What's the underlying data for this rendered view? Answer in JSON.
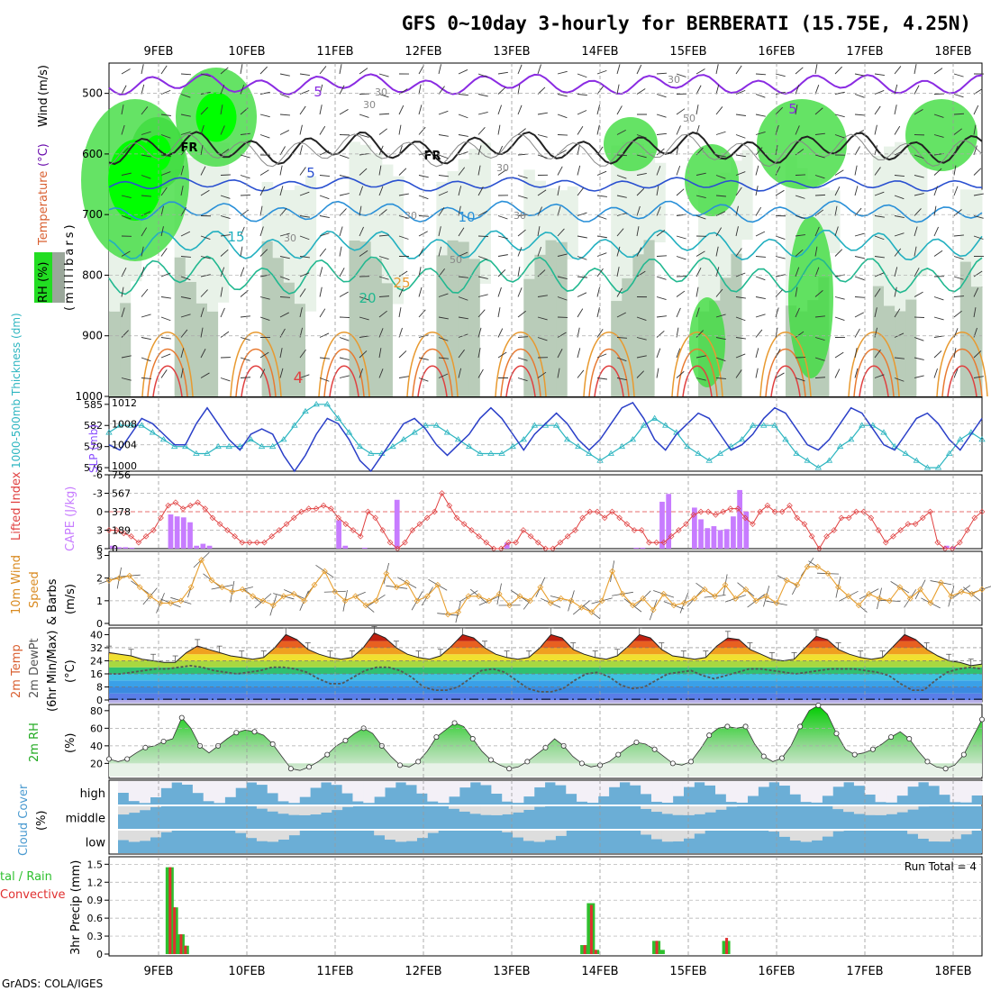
{
  "title": "GFS 0~10day 3-hourly for BERBERATI (15.75E, 4.25N)",
  "credit": "GrADS: COLA/IGES",
  "dates": [
    "9FEB",
    "10FEB",
    "11FEB",
    "12FEB",
    "13FEB",
    "14FEB",
    "15FEB",
    "16FEB",
    "17FEB",
    "18FEB"
  ],
  "colors": {
    "temp_line": "#d95f30",
    "wind_label": "#d98a20",
    "rh_green": "#22bb22",
    "cloud_blue": "#6baed6",
    "cloud_white": "#f3f0f7",
    "cloud_gray": "#dddddd",
    "slp_blue": "#2a3fc8",
    "thick_cyan": "#2cb5c0",
    "cape_purple": "#c77cff",
    "li_red": "#e04040",
    "precip_green": "#2ec02e",
    "precip_red": "#e03030",
    "dewpt_gray": "#555555"
  },
  "chart_data": [
    {
      "panel": "upper_air",
      "type": "heatmap",
      "ylabel_parts": [
        "RH (%)",
        "Temperature",
        "(°C)",
        "Wind",
        "(m/s)",
        "(millibars)"
      ],
      "y_ticks": [
        500,
        600,
        700,
        800,
        900,
        1000
      ],
      "ylim": [
        1000,
        450
      ],
      "contour_labels": [
        "5",
        "5",
        "FR",
        "FR",
        "5",
        "10",
        "15",
        "20",
        "25",
        "4",
        "30",
        "30",
        "30",
        "30",
        "30",
        "30",
        "30",
        "50",
        "50"
      ],
      "temperature_isotherms_c": [
        -5,
        0,
        5,
        10,
        15,
        20,
        25,
        30
      ]
    },
    {
      "panel": "slp_thickness",
      "type": "line",
      "ylabel_left": "1000-500mb Thickness (dm)",
      "ylabel_right": "SLP (mb)",
      "y_ticks_left": [
        576,
        579,
        582,
        585
      ],
      "y_ticks_right": [
        1000,
        1004,
        1008,
        1012
      ],
      "series": [
        {
          "name": "SLP",
          "values": [
            1004,
            1003,
            1006,
            1009,
            1008,
            1006,
            1004,
            1004,
            1008,
            1011,
            1008,
            1005,
            1003,
            1006,
            1007,
            1006,
            1002,
            999,
            1002,
            1006,
            1009,
            1008,
            1005,
            1001,
            999,
            1002,
            1005,
            1008,
            1009,
            1007,
            1004,
            1002,
            1004,
            1006,
            1009,
            1011,
            1009,
            1006,
            1003,
            1006,
            1008,
            1010,
            1008,
            1005,
            1003,
            1005,
            1008,
            1011,
            1012,
            1009,
            1005,
            1003,
            1006,
            1008,
            1010,
            1009,
            1006,
            1003,
            1004,
            1006,
            1009,
            1011,
            1010,
            1007,
            1004,
            1003,
            1005,
            1008,
            1011,
            1010,
            1007,
            1004,
            1003,
            1006,
            1009,
            1010,
            1008,
            1005,
            1003,
            1006,
            1009
          ]
        },
        {
          "name": "Thickness",
          "values": [
            581,
            582,
            582,
            582,
            581,
            580,
            579,
            579,
            578,
            578,
            579,
            579,
            579,
            580,
            579,
            579,
            580,
            582,
            584,
            585,
            585,
            583,
            581,
            579,
            578,
            578,
            579,
            580,
            581,
            582,
            582,
            581,
            580,
            579,
            578,
            578,
            578,
            579,
            580,
            582,
            582,
            582,
            580,
            579,
            578,
            577,
            578,
            579,
            580,
            582,
            583,
            582,
            581,
            579,
            578,
            577,
            578,
            579,
            580,
            582,
            582,
            582,
            580,
            578,
            577,
            576,
            577,
            579,
            580,
            582,
            582,
            581,
            579,
            578,
            577,
            576,
            576,
            578,
            580,
            581,
            580
          ]
        }
      ]
    },
    {
      "panel": "cape_li",
      "type": "bar",
      "ylabel_left": "Lifted Index",
      "ylabel_right": "CAPE (J/kg)",
      "y_ticks_left": [
        -6,
        -3,
        0,
        3,
        6
      ],
      "y_ticks_right": [
        0,
        189,
        378,
        567,
        756
      ],
      "series": [
        {
          "name": "CAPE",
          "values": [
            30,
            15,
            15,
            10,
            0,
            0,
            0,
            0,
            0,
            350,
            330,
            320,
            270,
            30,
            50,
            30,
            0,
            0,
            0,
            0,
            0,
            0,
            0,
            0,
            0,
            0,
            0,
            0,
            0,
            0,
            0,
            0,
            0,
            0,
            0,
            290,
            30,
            0,
            0,
            10,
            0,
            0,
            0,
            0,
            500,
            0,
            0,
            0,
            0,
            0,
            0,
            0,
            0,
            0,
            0,
            0,
            0,
            0,
            0,
            0,
            0,
            60,
            0,
            0,
            0,
            0,
            0,
            0,
            0,
            0,
            0,
            0,
            0,
            0,
            0,
            0,
            0,
            0,
            0,
            0,
            0,
            10,
            10,
            0,
            0,
            480,
            560,
            0,
            0,
            0,
            420,
            300,
            210,
            230,
            190,
            200,
            330,
            600,
            380,
            0,
            0,
            0,
            0,
            0,
            0,
            0,
            0,
            0,
            0,
            0,
            0,
            0,
            0,
            0,
            0,
            0,
            0,
            0,
            0,
            0,
            0,
            0,
            0,
            0,
            0,
            0,
            0,
            0,
            0,
            30,
            20,
            0,
            0,
            0,
            0
          ]
        },
        {
          "name": "Lifted Index",
          "values": [
            3,
            3,
            3.5,
            4,
            5,
            4,
            3,
            1,
            -1,
            -1.5,
            -0.5,
            -1,
            -1.5,
            -0.5,
            1,
            2,
            3,
            4,
            5,
            5,
            5,
            5,
            4,
            3,
            2,
            1,
            0,
            -0.5,
            -0.5,
            -1,
            -0.5,
            1,
            2,
            3,
            4,
            0,
            1,
            3,
            5,
            6,
            5,
            3,
            2,
            1,
            0,
            -3,
            -1,
            1,
            2,
            3,
            4,
            5,
            6,
            6,
            5,
            5,
            3,
            4,
            5,
            6,
            6,
            5,
            4,
            3,
            1,
            0,
            0,
            1,
            0,
            1,
            2,
            3,
            3,
            5,
            5,
            5,
            4,
            3,
            2,
            0.5,
            0,
            0,
            0.5,
            0,
            -0.5,
            -0.5,
            1,
            2,
            0,
            -1,
            0,
            0,
            -1,
            1,
            2,
            4,
            6,
            4,
            3,
            1,
            1,
            0,
            0,
            1,
            3,
            5,
            4,
            3,
            2,
            2,
            1,
            0,
            5,
            6,
            6,
            5,
            3,
            1,
            0
          ]
        }
      ]
    },
    {
      "panel": "wind10m",
      "type": "line",
      "ylabel": "10m Wind Speed & Barbs (m/s)",
      "y_ticks": [
        0,
        1,
        2,
        3
      ],
      "series": [
        {
          "name": "10m Wind Speed",
          "values": [
            1.9,
            2.0,
            2.1,
            1.6,
            1.2,
            0.9,
            0.9,
            1.0,
            1.6,
            2.8,
            1.9,
            1.6,
            1.4,
            1.5,
            1.2,
            1.0,
            0.8,
            1.2,
            1.3,
            1.0,
            1.7,
            2.3,
            1.4,
            1.0,
            1.2,
            0.8,
            1.0,
            2.2,
            1.6,
            1.8,
            1.0,
            1.2,
            1.7,
            0.4,
            0.5,
            1.2,
            1.2,
            1.0,
            1.3,
            0.8,
            1.2,
            1.0,
            1.6,
            0.9,
            1.1,
            1.0,
            0.7,
            0.5,
            1.0,
            2.3,
            1.3,
            0.8,
            1.1,
            0.6,
            1.3,
            0.8,
            0.9,
            1.1,
            1.5,
            1.2,
            1.7,
            1.1,
            1.5,
            1.0,
            1.2,
            0.9,
            1.9,
            1.7,
            2.5,
            2.5,
            2.2,
            1.6,
            1.2,
            0.8,
            1.3,
            1.1,
            1.0,
            1.6,
            1.1,
            1.5,
            0.9,
            1.8,
            1.2,
            1.4,
            1.3,
            1.5
          ]
        }
      ]
    },
    {
      "panel": "temp2m",
      "type": "area",
      "ylabel": "2m Temp 2m DewPt (6hr Min/Max) (°C)",
      "y_ticks": [
        0,
        8,
        16,
        24,
        32,
        40
      ],
      "series": [
        {
          "name": "2m Temp",
          "values": [
            29,
            28,
            27,
            25,
            24,
            23,
            23,
            29,
            33,
            31,
            29,
            27,
            26,
            25,
            26,
            32,
            40,
            37,
            31,
            28,
            26,
            25,
            26,
            32,
            41,
            38,
            32,
            28,
            26,
            25,
            27,
            33,
            40,
            38,
            32,
            28,
            26,
            25,
            26,
            32,
            40,
            38,
            31,
            28,
            26,
            25,
            27,
            33,
            40,
            38,
            31,
            27,
            26,
            25,
            26,
            33,
            38,
            37,
            31,
            28,
            25,
            24,
            25,
            32,
            39,
            37,
            31,
            28,
            26,
            25,
            26,
            33,
            40,
            37,
            31,
            27,
            24,
            23,
            21,
            22
          ]
        },
        {
          "name": "2m DewPt",
          "values": [
            16,
            16,
            17,
            18,
            19,
            19,
            20,
            21,
            20,
            18,
            17,
            16,
            17,
            18,
            20,
            20,
            19,
            17,
            13,
            10,
            10,
            14,
            18,
            20,
            20,
            18,
            14,
            8,
            6,
            6,
            8,
            13,
            18,
            19,
            17,
            12,
            7,
            5,
            5,
            7,
            12,
            16,
            17,
            14,
            9,
            7,
            8,
            12,
            16,
            17,
            18,
            15,
            13,
            15,
            17,
            19,
            19,
            18,
            17,
            16,
            17,
            18,
            19,
            19,
            19,
            18,
            17,
            15,
            10,
            6,
            6,
            12,
            17,
            19,
            20,
            19
          ]
        }
      ]
    },
    {
      "panel": "rh2m",
      "type": "area",
      "ylabel": "2m RH (%)",
      "y_ticks": [
        20,
        40,
        60,
        80
      ],
      "series": [
        {
          "name": "2m RH",
          "values": [
            25,
            22,
            25,
            32,
            38,
            40,
            45,
            48,
            72,
            60,
            40,
            32,
            40,
            48,
            55,
            58,
            56,
            52,
            42,
            28,
            14,
            12,
            16,
            22,
            30,
            40,
            46,
            54,
            60,
            54,
            40,
            28,
            18,
            16,
            22,
            34,
            50,
            58,
            66,
            62,
            48,
            34,
            24,
            18,
            14,
            16,
            22,
            30,
            38,
            48,
            40,
            28,
            20,
            16,
            18,
            22,
            30,
            38,
            44,
            42,
            36,
            28,
            20,
            18,
            22,
            36,
            52,
            60,
            62,
            60,
            62,
            42,
            28,
            22,
            26,
            40,
            62,
            80,
            86,
            76,
            54,
            36,
            30,
            32,
            36,
            42,
            50,
            56,
            48,
            34,
            22,
            16,
            14,
            18,
            30,
            50,
            70
          ]
        }
      ]
    },
    {
      "panel": "cloud_cover",
      "type": "heatmap",
      "ylabel": "Cloud Cover (%)",
      "levels": [
        "high",
        "middle",
        "low"
      ]
    },
    {
      "panel": "precip",
      "type": "bar",
      "ylabel": "3hr Precip (mm)",
      "legend_left": [
        "tal / Rain",
        "Convective"
      ],
      "run_total": "Run Total = 4",
      "y_ticks": [
        0,
        0.3,
        0.6,
        0.9,
        1.2,
        1.5
      ],
      "series": [
        {
          "name": "Total",
          "values": [
            {
              "t": 5.6,
              "v": 1.45
            },
            {
              "t": 6.0,
              "v": 0.78
            },
            {
              "t": 6.6,
              "v": 0.33
            },
            {
              "t": 7.0,
              "v": 0.14
            },
            {
              "t": 43.6,
              "v": 0.15
            },
            {
              "t": 44.2,
              "v": 0.85
            },
            {
              "t": 44.6,
              "v": 0.07
            },
            {
              "t": 50.2,
              "v": 0.22
            },
            {
              "t": 50.6,
              "v": 0.07
            },
            {
              "t": 56.6,
              "v": 0.22
            }
          ]
        },
        {
          "name": "Rain",
          "values": [
            {
              "t": 5.6,
              "v": 1.45
            },
            {
              "t": 6.0,
              "v": 0.78
            },
            {
              "t": 6.6,
              "v": 0.33
            },
            {
              "t": 7.0,
              "v": 0.14
            },
            {
              "t": 43.6,
              "v": 0.15
            },
            {
              "t": 44.2,
              "v": 0.82
            },
            {
              "t": 44.6,
              "v": 0.07
            },
            {
              "t": 50.2,
              "v": 0.22
            },
            {
              "t": 56.6,
              "v": 0.27
            }
          ]
        }
      ]
    }
  ]
}
